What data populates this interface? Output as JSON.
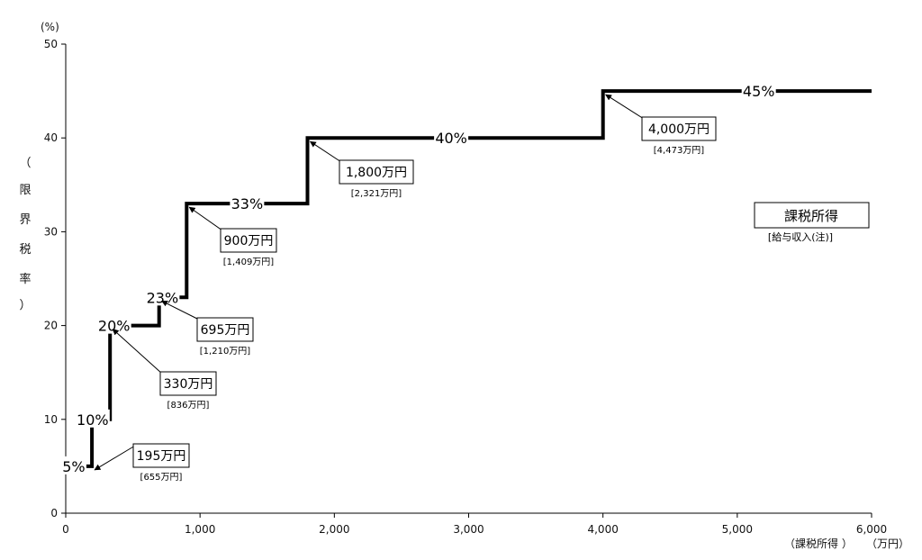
{
  "chart_data": {
    "type": "line",
    "step": true,
    "y_unit": "(%)",
    "x_unit": "（万円）",
    "xlabel": "（課税所得 ）",
    "ylabel_chars": [
      "（",
      "限",
      "界",
      "税",
      "率",
      "）"
    ],
    "xlim": [
      0,
      6000
    ],
    "ylim": [
      0,
      50
    ],
    "x_ticks": [
      0,
      1000,
      2000,
      3000,
      4000,
      5000,
      6000
    ],
    "x_tick_labels": [
      "0",
      "1,000",
      "2,000",
      "3,000",
      "4,000",
      "5,000",
      "6,000"
    ],
    "y_ticks": [
      0,
      10,
      20,
      30,
      40,
      50
    ],
    "y_tick_labels": [
      "0",
      "10",
      "20",
      "30",
      "40",
      "50"
    ],
    "series": [
      {
        "x": [
          0,
          195,
          195,
          330,
          330,
          695,
          695,
          900,
          900,
          1800,
          1800,
          4000,
          4000,
          6000
        ],
        "y": [
          5,
          5,
          10,
          10,
          20,
          20,
          23,
          23,
          33,
          33,
          40,
          40,
          45,
          45
        ]
      }
    ],
    "rate_labels": [
      {
        "text": "5%",
        "x": 60,
        "y": 5
      },
      {
        "text": "10%",
        "x": 200,
        "y": 10
      },
      {
        "text": "20%",
        "x": 360,
        "y": 20
      },
      {
        "text": "23%",
        "x": 720,
        "y": 23
      },
      {
        "text": "33%",
        "x": 1350,
        "y": 33
      },
      {
        "text": "40%",
        "x": 2870,
        "y": 40
      },
      {
        "text": "45%",
        "x": 5160,
        "y": 45
      }
    ],
    "annotations": [
      {
        "label": "195万円",
        "sub": "[655万円]",
        "at": [
          195,
          5
        ]
      },
      {
        "label": "330万円",
        "sub": "[836万円]",
        "at": [
          330,
          20
        ]
      },
      {
        "label": "695万円",
        "sub": "[1,210万円]",
        "at": [
          695,
          23
        ]
      },
      {
        "label": "900万円",
        "sub": "[1,409万円]",
        "at": [
          900,
          33
        ]
      },
      {
        "label": "1,800万円",
        "sub": "[2,321万円]",
        "at": [
          1800,
          40
        ]
      },
      {
        "label": "4,000万円",
        "sub": "[4,473万円]",
        "at": [
          4000,
          45
        ]
      }
    ],
    "legend": {
      "label": "課税所得",
      "sub": "[給与収入(注)]",
      "position": "right"
    }
  }
}
